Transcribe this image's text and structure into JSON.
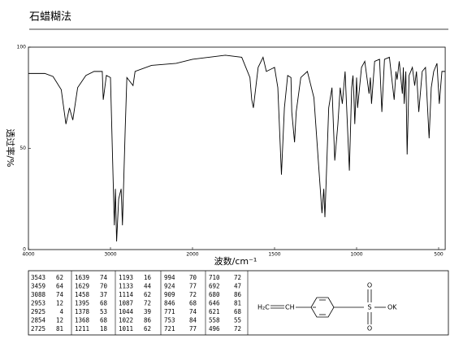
{
  "header": {
    "title": "石蜡糊法"
  },
  "chart_data": {
    "type": "line",
    "y_label": "透过率/%",
    "x_label": "波数/cm⁻¹",
    "color": "#000000",
    "xlim": [
      4000,
      460
    ],
    "xticks": [
      4000,
      3000,
      2000,
      1500,
      1000,
      500
    ],
    "ylim": [
      0,
      100
    ],
    "yticks": [
      0,
      50,
      100
    ],
    "x": [
      4000,
      3800,
      3700,
      3600,
      3543,
      3500,
      3459,
      3400,
      3300,
      3200,
      3100,
      3088,
      3050,
      3000,
      2953,
      2940,
      2925,
      2900,
      2870,
      2854,
      2820,
      2800,
      2725,
      2700,
      2500,
      2200,
      2000,
      1900,
      1800,
      1700,
      1650,
      1639,
      1629,
      1600,
      1570,
      1550,
      1500,
      1480,
      1458,
      1440,
      1420,
      1400,
      1395,
      1378,
      1368,
      1340,
      1300,
      1260,
      1230,
      1211,
      1200,
      1193,
      1170,
      1150,
      1133,
      1114,
      1100,
      1087,
      1070,
      1044,
      1030,
      1022,
      1016,
      1011,
      1000,
      994,
      970,
      950,
      924,
      916,
      909,
      890,
      860,
      846,
      830,
      800,
      771,
      760,
      753,
      740,
      721,
      715,
      710,
      700,
      692,
      680,
      660,
      646,
      635,
      621,
      600,
      580,
      558,
      545,
      530,
      510,
      496,
      480,
      460
    ],
    "values": [
      87,
      87,
      85.5,
      79,
      62,
      70,
      64,
      80,
      86,
      88,
      88,
      74,
      86,
      85,
      12,
      30,
      4,
      25,
      30,
      12,
      60,
      85,
      81,
      88,
      91,
      92,
      94,
      95,
      96,
      95,
      85,
      74,
      70,
      90,
      95,
      88,
      90,
      80,
      37,
      70,
      86,
      85,
      68,
      53,
      68,
      85,
      88,
      75,
      40,
      18,
      30,
      16,
      70,
      80,
      44,
      62,
      80,
      72,
      88,
      39,
      80,
      86,
      75,
      62,
      85,
      70,
      90,
      93,
      77,
      85,
      72,
      93,
      94,
      68,
      94,
      95,
      74,
      88,
      84,
      93,
      77,
      90,
      72,
      88,
      47,
      86,
      90,
      81,
      88,
      68,
      88,
      90,
      55,
      80,
      88,
      92,
      72,
      88,
      88
    ]
  },
  "peak_table": {
    "columns": [
      [
        [
          3543,
          62
        ],
        [
          3459,
          64
        ],
        [
          3088,
          74
        ],
        [
          2953,
          12
        ],
        [
          2925,
          4
        ],
        [
          2854,
          12
        ],
        [
          2725,
          81
        ]
      ],
      [
        [
          1639,
          74
        ],
        [
          1629,
          70
        ],
        [
          1458,
          37
        ],
        [
          1395,
          68
        ],
        [
          1378,
          53
        ],
        [
          1368,
          68
        ],
        [
          1211,
          18
        ]
      ],
      [
        [
          1193,
          16
        ],
        [
          1133,
          44
        ],
        [
          1114,
          62
        ],
        [
          1087,
          72
        ],
        [
          1044,
          39
        ],
        [
          1022,
          86
        ],
        [
          1011,
          62
        ]
      ],
      [
        [
          994,
          70
        ],
        [
          924,
          77
        ],
        [
          909,
          72
        ],
        [
          846,
          68
        ],
        [
          771,
          74
        ],
        [
          753,
          84
        ],
        [
          721,
          77
        ]
      ],
      [
        [
          710,
          72
        ],
        [
          692,
          47
        ],
        [
          680,
          86
        ],
        [
          646,
          81
        ],
        [
          621,
          68
        ],
        [
          558,
          55
        ],
        [
          496,
          72
        ]
      ]
    ]
  },
  "structure": {
    "vinyl": "H₂C",
    "ch": "CH",
    "sulfur": "S",
    "oxygen_top": "O",
    "oxygen_bottom": "O",
    "salt": "OK"
  }
}
